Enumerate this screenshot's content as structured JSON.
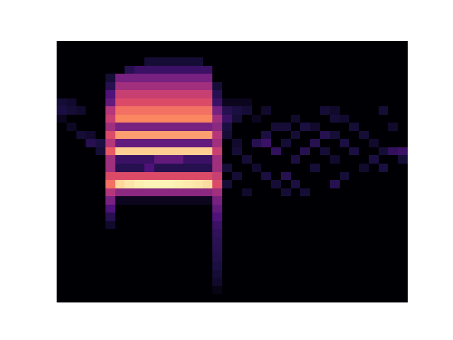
{
  "chart_data": {
    "type": "heatmap",
    "tick_labels": false,
    "xlim": [
      0,
      36
    ],
    "ylim": [
      32,
      0
    ],
    "zlim": [
      0,
      1
    ],
    "cells": [
      [
        0,
        0,
        0,
        0,
        0,
        0,
        0,
        0,
        0,
        0,
        0,
        0,
        0,
        0,
        0,
        0,
        0,
        0,
        0,
        0,
        0,
        0,
        0,
        0,
        0,
        0,
        0,
        0,
        0,
        0,
        0,
        0,
        0,
        0,
        0,
        0
      ],
      [
        0,
        0,
        0,
        0,
        0,
        0,
        0,
        0,
        0,
        0,
        0,
        0,
        0,
        0,
        0,
        0,
        0,
        0,
        0,
        0,
        0,
        0,
        0,
        0,
        0,
        0,
        0,
        0,
        0,
        0,
        0,
        0,
        0,
        0,
        0,
        0
      ],
      [
        0,
        0,
        0,
        0,
        0,
        0,
        0,
        0,
        0,
        0.1,
        0.1,
        0.1,
        0.1,
        0.1,
        0.1,
        0,
        0,
        0,
        0,
        0,
        0,
        0,
        0,
        0,
        0,
        0,
        0,
        0,
        0,
        0,
        0,
        0,
        0,
        0,
        0,
        0
      ],
      [
        0,
        0,
        0,
        0,
        0,
        0,
        0,
        0.15,
        0.2,
        0.2,
        0.2,
        0.2,
        0.2,
        0.2,
        0.2,
        0.2,
        0,
        0,
        0,
        0,
        0,
        0,
        0,
        0,
        0,
        0,
        0,
        0,
        0,
        0,
        0,
        0,
        0,
        0,
        0,
        0
      ],
      [
        0,
        0,
        0,
        0,
        0,
        0.1,
        0.35,
        0.35,
        0.35,
        0.35,
        0.35,
        0.35,
        0.35,
        0.35,
        0.35,
        0.35,
        0,
        0,
        0,
        0,
        0,
        0,
        0,
        0,
        0,
        0,
        0,
        0,
        0,
        0,
        0,
        0,
        0,
        0,
        0,
        0
      ],
      [
        0,
        0,
        0,
        0,
        0,
        0.15,
        0.45,
        0.45,
        0.45,
        0.45,
        0.45,
        0.45,
        0.45,
        0.45,
        0.45,
        0.45,
        0.1,
        0,
        0,
        0,
        0,
        0,
        0,
        0,
        0,
        0,
        0,
        0,
        0,
        0,
        0,
        0,
        0,
        0,
        0,
        0
      ],
      [
        0,
        0,
        0,
        0,
        0,
        0.25,
        0.55,
        0.55,
        0.55,
        0.55,
        0.55,
        0.55,
        0.55,
        0.55,
        0.55,
        0.55,
        0.15,
        0,
        0,
        0,
        0,
        0,
        0,
        0,
        0,
        0,
        0,
        0,
        0,
        0,
        0,
        0,
        0,
        0,
        0,
        0
      ],
      [
        0.1,
        0.08,
        0,
        0,
        0,
        0.3,
        0.6,
        0.6,
        0.6,
        0.6,
        0.6,
        0.6,
        0.6,
        0.6,
        0.6,
        0.6,
        0.2,
        0.05,
        0.05,
        0.05,
        0,
        0,
        0,
        0,
        0,
        0,
        0,
        0,
        0,
        0,
        0,
        0,
        0,
        0,
        0,
        0
      ],
      [
        0.12,
        0.1,
        0.08,
        0,
        0,
        0.5,
        0.7,
        0.7,
        0.7,
        0.7,
        0.7,
        0.7,
        0.7,
        0.7,
        0.7,
        0.7,
        0.35,
        0.15,
        0.12,
        0.1,
        0,
        0.08,
        0,
        0,
        0,
        0,
        0,
        0.1,
        0.08,
        0,
        0,
        0,
        0,
        0.1,
        0,
        0
      ],
      [
        0.05,
        0,
        0,
        0,
        0,
        0.55,
        0.75,
        0.75,
        0.75,
        0.75,
        0.75,
        0.75,
        0.75,
        0.75,
        0.75,
        0.75,
        0.45,
        0.2,
        0.1,
        0,
        0.05,
        0,
        0,
        0,
        0.08,
        0,
        0,
        0,
        0.1,
        0.08,
        0,
        0,
        0,
        0,
        0,
        0
      ],
      [
        0,
        0.06,
        0,
        0,
        0,
        0.45,
        0.35,
        0.35,
        0.35,
        0.35,
        0.35,
        0.35,
        0.35,
        0.35,
        0.35,
        0.35,
        0.4,
        0.12,
        0,
        0,
        0,
        0,
        0.1,
        0.1,
        0,
        0.12,
        0.08,
        0,
        0,
        0,
        0.1,
        0,
        0,
        0,
        0.08,
        0
      ],
      [
        0,
        0,
        0.1,
        0.08,
        0,
        0.6,
        0.8,
        0.8,
        0.8,
        0.8,
        0.8,
        0.8,
        0.8,
        0.8,
        0.8,
        0.8,
        0.5,
        0.1,
        0,
        0,
        0,
        0.12,
        0,
        0,
        0.1,
        0,
        0,
        0.15,
        0.1,
        0,
        0,
        0.1,
        0,
        0,
        0,
        0
      ],
      [
        0,
        0,
        0,
        0.15,
        0.12,
        0.5,
        0.3,
        0.3,
        0.3,
        0.3,
        0.3,
        0.3,
        0.3,
        0.3,
        0.3,
        0.3,
        0.45,
        0,
        0.08,
        0,
        0.15,
        0.2,
        0,
        0.1,
        0,
        0,
        0.15,
        0,
        0,
        0.12,
        0,
        0,
        0.08,
        0,
        0,
        0
      ],
      [
        0,
        0,
        0,
        0,
        0.1,
        0.65,
        0.9,
        0.9,
        0.9,
        0.9,
        0.9,
        0.9,
        0.9,
        0.9,
        0.9,
        0.9,
        0.55,
        0,
        0.1,
        0,
        0,
        0,
        0.18,
        0,
        0,
        0.15,
        0,
        0.1,
        0,
        0,
        0.12,
        0,
        0,
        0.1,
        0.18,
        0.2
      ],
      [
        0,
        0,
        0,
        0,
        0,
        0.45,
        0.2,
        0.2,
        0.2,
        0.2,
        0.3,
        0.3,
        0.3,
        0.2,
        0.2,
        0.2,
        0.45,
        0,
        0,
        0.1,
        0,
        0,
        0,
        0,
        0.12,
        0,
        0,
        0,
        0.08,
        0,
        0,
        0,
        0.12,
        0,
        0,
        0.1
      ],
      [
        0,
        0,
        0,
        0,
        0,
        0.45,
        0.15,
        0.15,
        0.15,
        0.25,
        0.15,
        0.15,
        0.15,
        0.15,
        0.15,
        0.15,
        0.45,
        0.1,
        0,
        0,
        0.08,
        0,
        0,
        0,
        0,
        0,
        0.1,
        0,
        0,
        0,
        0,
        0.08,
        0,
        0.12,
        0,
        0
      ],
      [
        0,
        0,
        0,
        0,
        0,
        0.6,
        0.6,
        0.6,
        0.6,
        0.6,
        0.6,
        0.6,
        0.6,
        0.6,
        0.6,
        0.6,
        0.55,
        0,
        0.1,
        0,
        0,
        0.12,
        0,
        0.15,
        0,
        0,
        0,
        0,
        0,
        0.1,
        0,
        0,
        0,
        0,
        0,
        0
      ],
      [
        0,
        0,
        0,
        0,
        0,
        0.7,
        0.92,
        0.95,
        0.97,
        0.98,
        0.98,
        0.98,
        0.97,
        0.96,
        0.95,
        0.93,
        0.6,
        0.1,
        0,
        0,
        0,
        0,
        0.1,
        0,
        0.12,
        0,
        0,
        0,
        0.15,
        0,
        0,
        0,
        0,
        0,
        0,
        0
      ],
      [
        0,
        0,
        0,
        0,
        0,
        0.5,
        0.4,
        0.4,
        0.4,
        0.4,
        0.4,
        0.4,
        0.4,
        0.4,
        0.4,
        0.4,
        0.45,
        0,
        0,
        0.08,
        0,
        0,
        0,
        0.1,
        0,
        0.1,
        0,
        0,
        0,
        0,
        0,
        0,
        0,
        0,
        0,
        0
      ],
      [
        0,
        0,
        0,
        0,
        0,
        0.35,
        0.05,
        0.05,
        0.05,
        0.05,
        0.05,
        0.05,
        0.05,
        0.05,
        0.05,
        0.05,
        0.35,
        0,
        0,
        0,
        0,
        0,
        0,
        0,
        0,
        0,
        0,
        0,
        0,
        0,
        0,
        0,
        0,
        0,
        0,
        0
      ],
      [
        0,
        0,
        0,
        0,
        0,
        0.25,
        0,
        0,
        0,
        0,
        0,
        0,
        0,
        0,
        0,
        0,
        0.3,
        0,
        0,
        0,
        0,
        0,
        0,
        0,
        0,
        0,
        0,
        0,
        0,
        0,
        0,
        0,
        0,
        0,
        0,
        0
      ],
      [
        0,
        0,
        0,
        0,
        0,
        0.15,
        0,
        0,
        0,
        0,
        0,
        0,
        0,
        0,
        0,
        0,
        0.25,
        0,
        0,
        0,
        0,
        0,
        0,
        0,
        0,
        0,
        0,
        0,
        0,
        0,
        0,
        0,
        0,
        0,
        0,
        0
      ],
      [
        0,
        0,
        0,
        0,
        0,
        0.08,
        0,
        0,
        0,
        0,
        0,
        0,
        0,
        0,
        0,
        0,
        0.2,
        0,
        0,
        0,
        0,
        0,
        0,
        0,
        0,
        0,
        0,
        0,
        0,
        0,
        0,
        0,
        0,
        0,
        0,
        0
      ],
      [
        0,
        0,
        0,
        0,
        0,
        0,
        0,
        0,
        0,
        0,
        0,
        0,
        0,
        0,
        0,
        0,
        0.18,
        0,
        0,
        0,
        0,
        0,
        0,
        0,
        0,
        0,
        0,
        0,
        0,
        0,
        0,
        0,
        0,
        0,
        0,
        0
      ],
      [
        0,
        0,
        0,
        0,
        0,
        0,
        0,
        0,
        0,
        0,
        0,
        0,
        0,
        0,
        0,
        0,
        0.16,
        0,
        0,
        0,
        0,
        0,
        0,
        0,
        0,
        0,
        0,
        0,
        0,
        0,
        0,
        0,
        0,
        0,
        0,
        0
      ],
      [
        0,
        0,
        0,
        0,
        0,
        0,
        0,
        0,
        0,
        0,
        0,
        0,
        0,
        0,
        0,
        0,
        0.15,
        0,
        0,
        0,
        0,
        0,
        0,
        0,
        0,
        0,
        0,
        0,
        0,
        0,
        0,
        0,
        0,
        0,
        0,
        0
      ],
      [
        0,
        0,
        0,
        0,
        0,
        0,
        0,
        0,
        0,
        0,
        0,
        0,
        0,
        0,
        0,
        0,
        0.14,
        0,
        0,
        0,
        0,
        0,
        0,
        0,
        0,
        0,
        0,
        0,
        0,
        0,
        0,
        0,
        0,
        0,
        0,
        0
      ],
      [
        0,
        0,
        0,
        0,
        0,
        0,
        0,
        0,
        0,
        0,
        0,
        0,
        0,
        0,
        0,
        0,
        0.12,
        0,
        0,
        0,
        0,
        0,
        0,
        0,
        0,
        0,
        0,
        0,
        0,
        0,
        0,
        0,
        0,
        0,
        0,
        0
      ],
      [
        0,
        0,
        0,
        0,
        0,
        0,
        0,
        0,
        0,
        0,
        0,
        0,
        0,
        0,
        0,
        0,
        0.1,
        0,
        0,
        0,
        0,
        0,
        0,
        0,
        0,
        0,
        0,
        0,
        0,
        0,
        0,
        0,
        0,
        0,
        0,
        0
      ],
      [
        0,
        0,
        0,
        0,
        0,
        0,
        0,
        0,
        0,
        0,
        0,
        0,
        0,
        0,
        0,
        0,
        0.08,
        0,
        0,
        0,
        0,
        0,
        0,
        0,
        0,
        0,
        0,
        0,
        0,
        0,
        0,
        0,
        0,
        0,
        0,
        0
      ],
      [
        0,
        0,
        0,
        0,
        0,
        0,
        0,
        0,
        0,
        0,
        0,
        0,
        0,
        0,
        0,
        0,
        0.03,
        0,
        0,
        0,
        0,
        0,
        0,
        0,
        0,
        0,
        0,
        0,
        0,
        0,
        0,
        0,
        0,
        0,
        0,
        0
      ],
      [
        0,
        0,
        0,
        0,
        0,
        0,
        0,
        0,
        0,
        0,
        0,
        0,
        0,
        0,
        0,
        0,
        0,
        0,
        0,
        0,
        0,
        0,
        0,
        0,
        0,
        0,
        0,
        0,
        0,
        0,
        0,
        0,
        0,
        0,
        0,
        0
      ]
    ]
  }
}
